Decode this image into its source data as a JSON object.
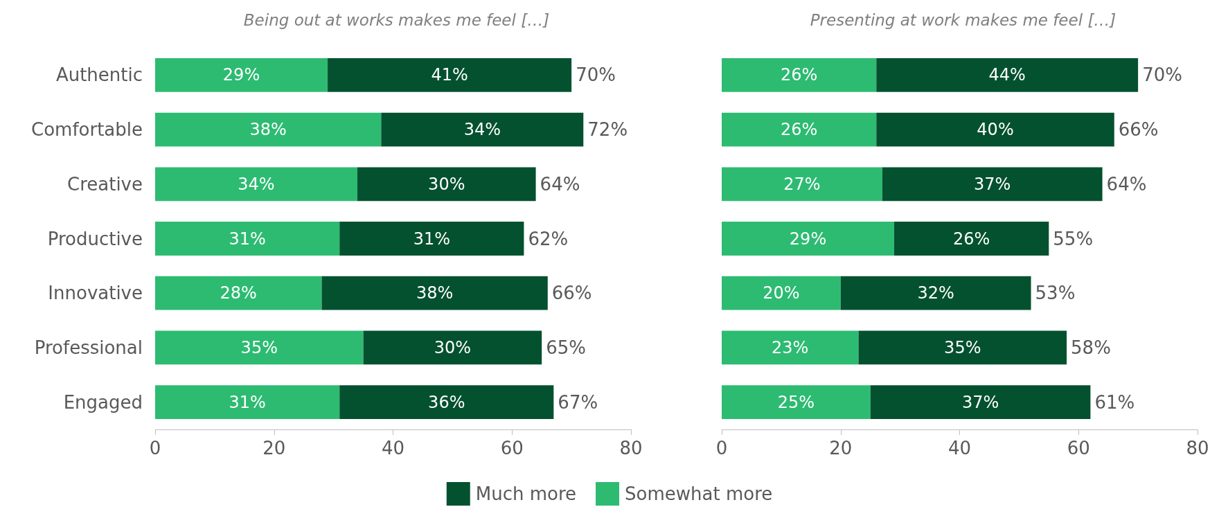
{
  "chart_data": [
    {
      "type": "bar",
      "orientation": "horizontal",
      "stacked": true,
      "title": "Being out at works makes me feel […]",
      "categories": [
        "Authentic",
        "Comfortable",
        "Creative",
        "Productive",
        "Innovative",
        "Professional",
        "Engaged"
      ],
      "series": [
        {
          "name": "Somewhat more",
          "color": "#2dbb72",
          "values": [
            29,
            38,
            34,
            31,
            28,
            35,
            31
          ],
          "value_labels": [
            "29%",
            "38%",
            "34%",
            "31%",
            "28%",
            "35%",
            "31%"
          ]
        },
        {
          "name": "Much more",
          "color": "#04512f",
          "values": [
            41,
            34,
            30,
            31,
            38,
            30,
            36
          ],
          "value_labels": [
            "41%",
            "34%",
            "30%",
            "31%",
            "38%",
            "30%",
            "36%"
          ]
        }
      ],
      "totals": [
        "70%",
        "72%",
        "64%",
        "62%",
        "66%",
        "65%",
        "67%"
      ],
      "xlim": [
        0,
        80
      ],
      "xticks": [
        0,
        20,
        40,
        60,
        80
      ],
      "grid": false,
      "legend": "bottom"
    },
    {
      "type": "bar",
      "orientation": "horizontal",
      "stacked": true,
      "title": "Presenting at work makes me feel […]",
      "categories": [
        null,
        null,
        null,
        null,
        null,
        null,
        null
      ],
      "series": [
        {
          "name": "Somewhat more",
          "color": "#2dbb72",
          "values": [
            26,
            26,
            27,
            29,
            20,
            23,
            25
          ],
          "value_labels": [
            "26%",
            "26%",
            "27%",
            "29%",
            "20%",
            "23%",
            "25%"
          ]
        },
        {
          "name": "Much more",
          "color": "#04512f",
          "values": [
            44,
            40,
            37,
            26,
            32,
            35,
            37
          ],
          "value_labels": [
            "44%",
            "40%",
            "37%",
            "26%",
            "32%",
            "35%",
            "37%"
          ]
        }
      ],
      "totals": [
        "70%",
        "66%",
        "64%",
        "55%",
        "53%",
        "58%",
        "61%"
      ],
      "xlim": [
        0,
        80
      ],
      "xticks": [
        0,
        20,
        40,
        60,
        80
      ],
      "grid": false,
      "tick_labels": "x",
      "legend": "bottom"
    }
  ]
}
